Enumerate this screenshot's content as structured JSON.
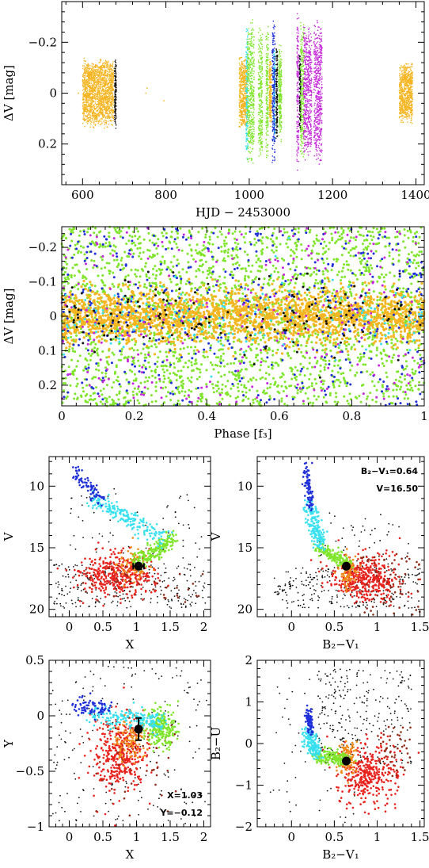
{
  "colors": {
    "orange": "#f5b521",
    "green": "#7fe52a",
    "blue": "#1f2fd8",
    "cyan": "#38e0f0",
    "magenta": "#c428d8",
    "black": "#111111",
    "red": "#e8221c",
    "darkred": "#8e2a16",
    "darkorange": "#f08a18"
  },
  "chart_data": [
    {
      "id": "lightcurve",
      "type": "scatter",
      "xlabel": "HJD  −  2453000",
      "ylabel": "ΔV [mag]",
      "xlim": [
        550,
        1420
      ],
      "ylim": [
        0.36,
        -0.36
      ],
      "xticks": [
        600,
        800,
        1000,
        1200,
        1400
      ],
      "yticks": [
        -0.2,
        0,
        0.2
      ],
      "ytick_labels": [
        "−0.2",
        "0",
        "0.2"
      ],
      "series": [
        {
          "color": "orange",
          "clusters": [
            [
              600,
              675,
              0.14
            ],
            [
              976,
              995,
              0.15
            ],
            [
              1048,
              1054,
              0.14
            ],
            [
              1360,
              1392,
              0.12
            ]
          ]
        },
        {
          "color": "black",
          "clusters": [
            [
              677,
              681,
              0.14
            ],
            [
              1064,
              1068,
              0.2
            ],
            [
              1120,
              1124,
              0.18
            ]
          ]
        },
        {
          "color": "cyan",
          "clusters": [
            [
              992,
              997,
              0.3
            ],
            [
              1058,
              1062,
              0.2
            ]
          ]
        },
        {
          "color": "green",
          "clusters": [
            [
              995,
              1012,
              0.3
            ],
            [
              1022,
              1032,
              0.28
            ],
            [
              1040,
              1046,
              0.28
            ],
            [
              1070,
              1078,
              0.2
            ],
            [
              1123,
              1132,
              0.3
            ]
          ]
        },
        {
          "color": "blue",
          "clusters": [
            [
              1055,
              1062,
              0.3
            ]
          ]
        },
        {
          "color": "magenta",
          "clusters": [
            [
              1114,
              1119,
              0.33
            ],
            [
              1130,
              1150,
              0.28
            ],
            [
              1155,
              1175,
              0.3
            ]
          ]
        }
      ],
      "sparse_points": [
        {
          "color": "orange",
          "x": 590,
          "y": 0.0
        },
        {
          "color": "orange",
          "x": 752,
          "y": 0.0
        },
        {
          "color": "orange",
          "x": 755,
          "y": -0.02
        },
        {
          "color": "orange",
          "x": 795,
          "y": 0.03
        }
      ]
    },
    {
      "id": "phase",
      "type": "scatter",
      "xlabel": "Phase [f₃]",
      "ylabel": "ΔV [mag]",
      "xlim": [
        0,
        1
      ],
      "ylim": [
        0.26,
        -0.26
      ],
      "xticks": [
        0,
        0.2,
        0.4,
        0.6,
        0.8,
        1
      ],
      "xtick_labels": [
        "0",
        "0.2",
        "0.4",
        "0.6",
        "0.8",
        "1"
      ],
      "yticks": [
        -0.2,
        -0.1,
        0,
        0.1,
        0.2
      ],
      "ytick_labels": [
        "−0.2",
        "−0.1",
        "0",
        "0.1",
        "0.2"
      ],
      "series": [
        {
          "color": "green",
          "sigma": 0.14,
          "n": 2600
        },
        {
          "color": "orange",
          "sigma": 0.07,
          "n": 2400
        },
        {
          "color": "blue",
          "sigma": 0.14,
          "n": 450
        },
        {
          "color": "magenta",
          "sigma": 0.14,
          "n": 250
        },
        {
          "color": "cyan",
          "sigma": 0.12,
          "n": 150
        },
        {
          "color": "black",
          "sigma": 0.1,
          "n": 150
        }
      ]
    },
    {
      "id": "cmd_vx",
      "type": "scatter",
      "xlabel": "X",
      "ylabel": "V",
      "xlim": [
        -0.3,
        2.1
      ],
      "ylim": [
        20.6,
        7.6
      ],
      "xticks": [
        0,
        0.5,
        1,
        1.5,
        2
      ],
      "xtick_labels": [
        "0",
        "0.5",
        "1",
        "1.5",
        "2"
      ],
      "yticks": [
        10,
        15,
        20
      ],
      "ytick_labels": [
        "10",
        "15",
        "20"
      ],
      "target": {
        "x": 1.03,
        "y": 16.5,
        "err_x": 0.08,
        "err_y": 0
      }
    },
    {
      "id": "cmd_vbv",
      "type": "scatter",
      "xlabel": "B₂−V₁",
      "ylabel": "V",
      "xlim": [
        -0.4,
        1.55
      ],
      "ylim": [
        20.6,
        7.6
      ],
      "xticks": [
        0,
        0.5,
        1,
        1.5
      ],
      "xtick_labels": [
        "0",
        "0.5",
        "1",
        "1.5"
      ],
      "yticks": [
        10,
        15,
        20
      ],
      "ytick_labels": [
        "10",
        "15",
        "20"
      ],
      "target": {
        "x": 0.64,
        "y": 16.5
      },
      "annotations": [
        "B₂−V₁=0.64",
        "V=16.50"
      ]
    },
    {
      "id": "ccd_yx",
      "type": "scatter",
      "xlabel": "X",
      "ylabel": "Y",
      "xlim": [
        -0.3,
        2.1
      ],
      "ylim": [
        -1.0,
        0.5
      ],
      "xticks": [
        0,
        0.5,
        1,
        1.5,
        2
      ],
      "xtick_labels": [
        "0",
        "0.5",
        "1",
        "1.5",
        "2"
      ],
      "yticks": [
        -1,
        -0.5,
        0,
        0.5
      ],
      "ytick_labels": [
        "−1",
        "−0.5",
        "0",
        "0.5"
      ],
      "target": {
        "x": 1.03,
        "y": -0.12,
        "err_y": 0.1
      },
      "annotations": [
        "X=1.03",
        "Y=−0.12"
      ]
    },
    {
      "id": "ccd_ub",
      "type": "scatter",
      "xlabel": "B₂−V₁",
      "ylabel": "B₂−U",
      "xlim": [
        -0.4,
        1.55
      ],
      "ylim": [
        -2.0,
        2.0
      ],
      "xticks": [
        0,
        0.5,
        1,
        1.5
      ],
      "xtick_labels": [
        "0",
        "0.5",
        "1",
        "1.5"
      ],
      "yticks": [
        -2,
        -1,
        0,
        1,
        2
      ],
      "ytick_labels": [
        "−2",
        "−1",
        "0",
        "1",
        "2"
      ],
      "target": {
        "x": 0.64,
        "y": -0.42
      }
    }
  ]
}
